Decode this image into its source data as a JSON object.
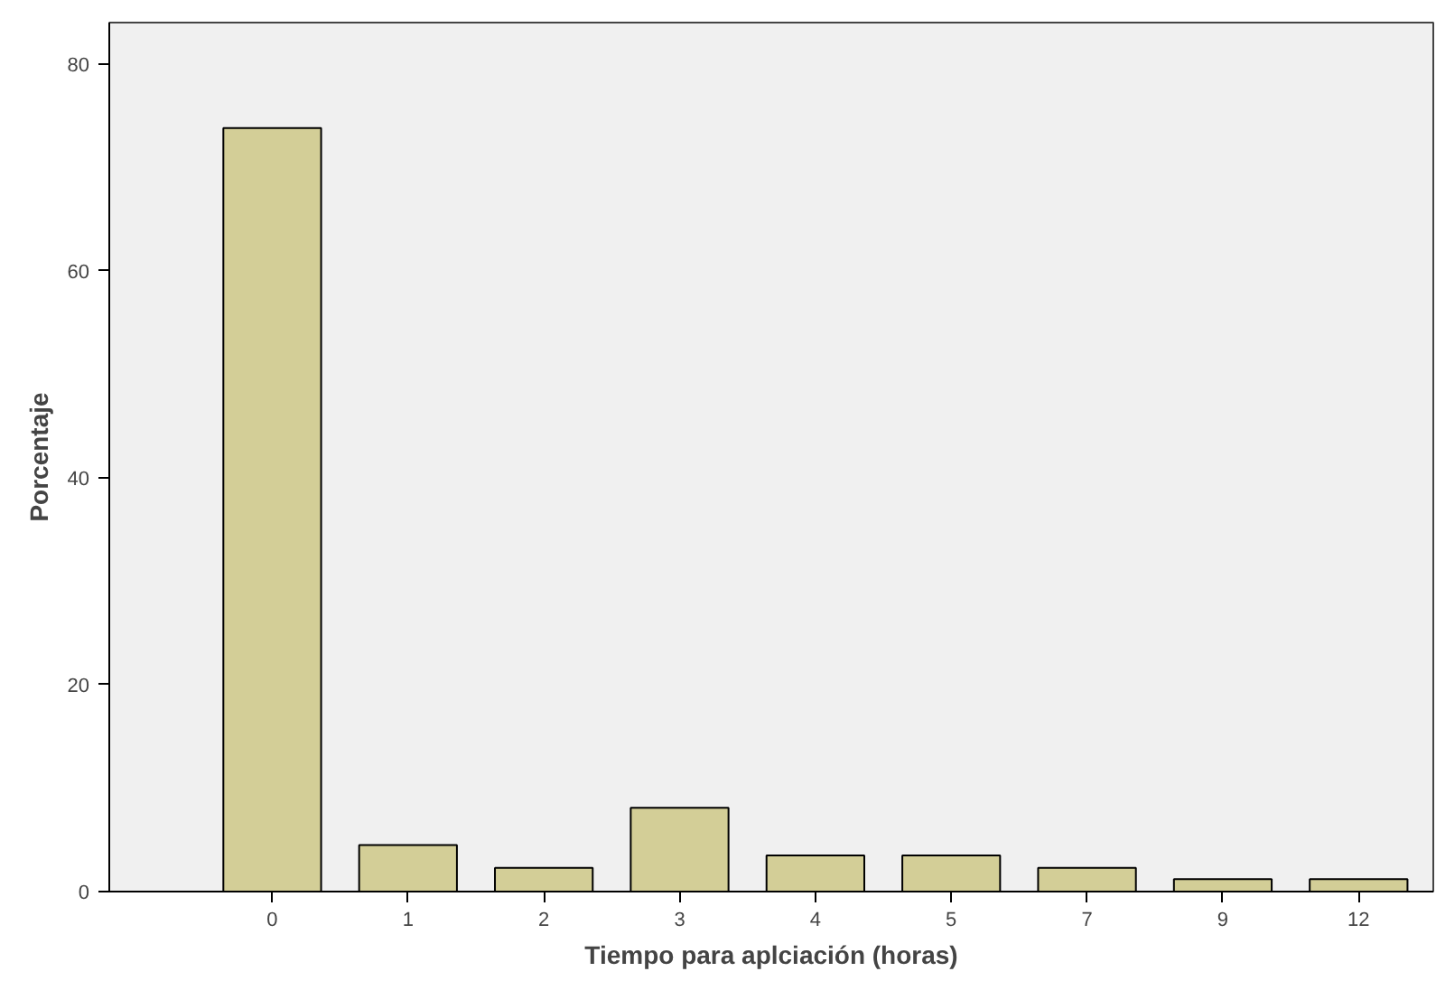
{
  "chart_data": {
    "type": "bar",
    "xlabel": "Tiempo para aplciación (horas)",
    "ylabel": "Porcentaje",
    "categories": [
      "0",
      "1",
      "2",
      "3",
      "4",
      "5",
      "7",
      "9",
      "12"
    ],
    "values": [
      73.8,
      4.5,
      2.3,
      8.1,
      3.5,
      3.5,
      2.3,
      1.2,
      1.2
    ],
    "color": "#d3ce97",
    "ylim": [
      0,
      84
    ],
    "yticks": [
      0,
      20,
      40,
      60,
      80
    ],
    "grid": false
  }
}
